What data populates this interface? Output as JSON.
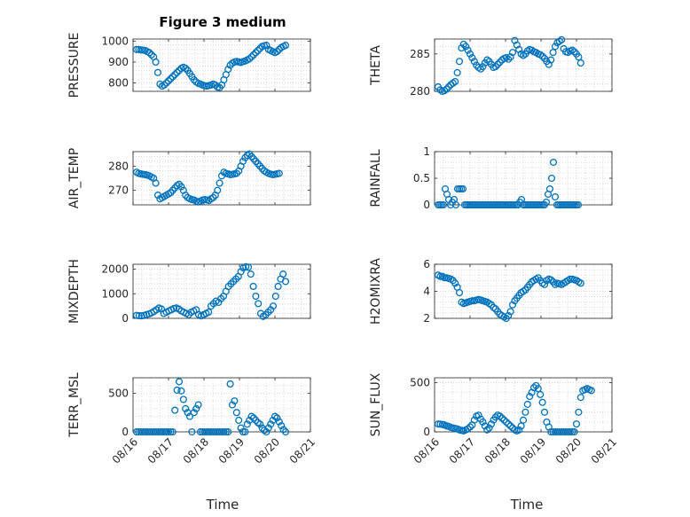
{
  "figure": {
    "title": "Figure 3 medium",
    "marker_color": "#0072bd",
    "grid": "minor dotted",
    "xlabel": "Time",
    "xticks": [
      "08/16",
      "08/17",
      "08/18",
      "08/19",
      "08/20",
      "08/21"
    ]
  },
  "chart_data": [
    {
      "type": "scatter",
      "name": "PRESSURE",
      "ylabel": "PRESSURE",
      "ylim": [
        760,
        1010
      ],
      "yticks": [
        800,
        900,
        1000
      ],
      "xlim": [
        0,
        5
      ],
      "x": [
        0.1,
        0.16,
        0.22,
        0.28,
        0.34,
        0.4,
        0.46,
        0.52,
        0.58,
        0.64,
        0.7,
        0.76,
        0.82,
        0.88,
        0.94,
        1.0,
        1.06,
        1.12,
        1.18,
        1.24,
        1.3,
        1.36,
        1.42,
        1.48,
        1.54,
        1.6,
        1.66,
        1.72,
        1.78,
        1.84,
        1.9,
        1.96,
        2.02,
        2.08,
        2.14,
        2.2,
        2.26,
        2.32,
        2.38,
        2.44,
        2.5,
        2.56,
        2.62,
        2.68,
        2.74,
        2.8,
        2.86,
        2.92,
        2.98,
        3.04,
        3.1,
        3.16,
        3.22,
        3.28,
        3.34,
        3.4,
        3.46,
        3.52,
        3.58,
        3.64,
        3.7,
        3.76,
        3.82,
        3.88,
        3.94,
        4.0,
        4.06,
        4.12,
        4.18,
        4.24,
        4.3
      ],
      "y": [
        960,
        960,
        958,
        957,
        955,
        950,
        945,
        935,
        925,
        900,
        850,
        795,
        785,
        790,
        800,
        810,
        820,
        830,
        840,
        850,
        860,
        870,
        875,
        870,
        860,
        845,
        830,
        815,
        805,
        798,
        795,
        790,
        787,
        785,
        788,
        790,
        795,
        790,
        780,
        778,
        790,
        815,
        840,
        865,
        885,
        895,
        900,
        903,
        900,
        898,
        902,
        905,
        910,
        915,
        925,
        935,
        945,
        955,
        965,
        975,
        978,
        980,
        960,
        955,
        950,
        945,
        950,
        960,
        970,
        975,
        980
      ]
    },
    {
      "type": "scatter",
      "name": "THETA",
      "ylabel": "THETA",
      "ylim": [
        280,
        287
      ],
      "yticks": [
        280,
        285
      ],
      "xlim": [
        0,
        5
      ],
      "x": [
        0.1,
        0.16,
        0.22,
        0.28,
        0.34,
        0.4,
        0.46,
        0.52,
        0.58,
        0.64,
        0.7,
        0.76,
        0.82,
        0.88,
        0.94,
        1.0,
        1.06,
        1.12,
        1.18,
        1.24,
        1.3,
        1.36,
        1.42,
        1.48,
        1.54,
        1.6,
        1.66,
        1.72,
        1.78,
        1.84,
        1.9,
        1.96,
        2.02,
        2.08,
        2.14,
        2.2,
        2.26,
        2.32,
        2.38,
        2.44,
        2.5,
        2.56,
        2.62,
        2.68,
        2.74,
        2.8,
        2.86,
        2.92,
        2.98,
        3.04,
        3.1,
        3.16,
        3.22,
        3.28,
        3.34,
        3.4,
        3.46,
        3.52,
        3.58,
        3.64,
        3.7,
        3.76,
        3.82,
        3.88,
        3.94,
        4.0,
        4.06,
        4.12
      ],
      "y": [
        280.6,
        280.2,
        280.0,
        280.1,
        280.3,
        280.6,
        280.9,
        281.1,
        281.3,
        282.5,
        284.0,
        285.8,
        286.3,
        286.0,
        285.5,
        285.0,
        284.5,
        284.0,
        283.5,
        283.2,
        283.0,
        283.3,
        283.8,
        284.2,
        284.0,
        283.6,
        283.2,
        283.3,
        283.6,
        283.9,
        284.2,
        284.4,
        284.5,
        284.3,
        284.6,
        285.2,
        286.8,
        286.2,
        285.6,
        285.0,
        284.8,
        285.0,
        285.4,
        285.6,
        285.5,
        285.3,
        285.2,
        285.0,
        284.9,
        284.7,
        284.4,
        284.0,
        283.6,
        284.2,
        285.2,
        286.0,
        286.5,
        286.7,
        286.9,
        285.7,
        285.3,
        285.2,
        285.4,
        285.5,
        285.3,
        285.0,
        284.6,
        283.8
      ]
    },
    {
      "type": "scatter",
      "name": "AIR_TEMP",
      "ylabel": "AIR_TEMP",
      "ylim": [
        264,
        286
      ],
      "yticks": [
        270,
        280
      ],
      "xlim": [
        0,
        5
      ],
      "x": [
        0.1,
        0.16,
        0.22,
        0.28,
        0.34,
        0.4,
        0.46,
        0.52,
        0.58,
        0.64,
        0.7,
        0.76,
        0.82,
        0.88,
        0.94,
        1.0,
        1.06,
        1.12,
        1.18,
        1.24,
        1.3,
        1.36,
        1.42,
        1.48,
        1.54,
        1.6,
        1.66,
        1.72,
        1.78,
        1.84,
        1.9,
        1.96,
        2.02,
        2.08,
        2.14,
        2.2,
        2.26,
        2.32,
        2.38,
        2.44,
        2.5,
        2.56,
        2.62,
        2.68,
        2.74,
        2.8,
        2.86,
        2.92,
        2.98,
        3.04,
        3.1,
        3.16,
        3.22,
        3.28,
        3.34,
        3.4,
        3.46,
        3.52,
        3.58,
        3.64,
        3.7,
        3.76,
        3.82,
        3.88,
        3.94,
        4.0,
        4.06,
        4.12
      ],
      "y": [
        277.5,
        277,
        276.8,
        276.6,
        276.5,
        276.3,
        276,
        275.5,
        275,
        273,
        268,
        266.5,
        267,
        267.5,
        268,
        268.5,
        269,
        270,
        271,
        272,
        272.5,
        271.5,
        270,
        268,
        267,
        266.5,
        266.2,
        266,
        265.5,
        265.2,
        265.5,
        266,
        266.2,
        266,
        265.8,
        266.5,
        267,
        268,
        270,
        273,
        276,
        277.5,
        277,
        276.8,
        276.5,
        276.6,
        276.8,
        277,
        278,
        280,
        282,
        283.5,
        284.5,
        285,
        284,
        283,
        282,
        281,
        280,
        279,
        278,
        277.5,
        277,
        276.7,
        276.5,
        276.6,
        276.8,
        277
      ]
    },
    {
      "type": "scatter",
      "name": "RAINFALL",
      "ylabel": "RAINFALL",
      "ylim": [
        0,
        1
      ],
      "yticks": [
        0,
        0.5,
        1
      ],
      "xlim": [
        0,
        5
      ],
      "x": [
        0.1,
        0.15,
        0.2,
        0.25,
        0.3,
        0.35,
        0.4,
        0.45,
        0.5,
        0.55,
        0.6,
        0.65,
        0.7,
        0.75,
        0.8,
        0.85,
        0.9,
        0.95,
        1.0,
        1.05,
        1.1,
        1.15,
        1.2,
        1.25,
        1.3,
        1.35,
        1.4,
        1.45,
        1.5,
        1.55,
        1.6,
        1.65,
        1.7,
        1.75,
        1.8,
        1.85,
        1.9,
        1.95,
        2.0,
        2.05,
        2.1,
        2.15,
        2.2,
        2.25,
        2.3,
        2.35,
        2.4,
        2.45,
        2.5,
        2.55,
        2.6,
        2.65,
        2.7,
        2.75,
        2.8,
        2.85,
        2.9,
        2.95,
        3.0,
        3.05,
        3.1,
        3.15,
        3.2,
        3.25,
        3.3,
        3.35,
        3.4,
        3.45,
        3.5,
        3.55,
        3.6,
        3.65,
        3.7,
        3.75,
        3.8,
        3.85,
        3.9,
        3.95,
        4.0,
        4.05
      ],
      "y": [
        0,
        0,
        0,
        0,
        0.3,
        0.2,
        0.1,
        0,
        0.05,
        0.1,
        0,
        0.3,
        0.3,
        0.3,
        0.3,
        0,
        0,
        0,
        0,
        0,
        0,
        0,
        0,
        0,
        0,
        0,
        0,
        0,
        0,
        0,
        0,
        0,
        0,
        0,
        0,
        0,
        0,
        0,
        0,
        0,
        0,
        0,
        0,
        0,
        0,
        0,
        0.05,
        0.1,
        0,
        0,
        0,
        0,
        0,
        0,
        0,
        0,
        0,
        0,
        0,
        0,
        0,
        0.05,
        0.2,
        0.3,
        0.5,
        0.8,
        0.15,
        0,
        0,
        0,
        0,
        0,
        0,
        0,
        0,
        0,
        0,
        0,
        0,
        0
      ]
    },
    {
      "type": "scatter",
      "name": "MIXDEPTH",
      "ylabel": "MIXDEPTH",
      "ylim": [
        0,
        2200
      ],
      "yticks": [
        0,
        1000,
        2000
      ],
      "xlim": [
        0,
        5
      ],
      "x": [
        0.1,
        0.17,
        0.24,
        0.31,
        0.38,
        0.45,
        0.52,
        0.59,
        0.66,
        0.73,
        0.8,
        0.87,
        0.94,
        1.01,
        1.08,
        1.15,
        1.22,
        1.29,
        1.36,
        1.43,
        1.5,
        1.57,
        1.64,
        1.71,
        1.78,
        1.85,
        1.92,
        1.99,
        2.06,
        2.13,
        2.2,
        2.27,
        2.34,
        2.41,
        2.48,
        2.55,
        2.62,
        2.69,
        2.76,
        2.83,
        2.9,
        2.97,
        3.04,
        3.11,
        3.18,
        3.25,
        3.32,
        3.39,
        3.46,
        3.53,
        3.6,
        3.67,
        3.74,
        3.81,
        3.88,
        3.95,
        4.02,
        4.09,
        4.16,
        4.23,
        4.3
      ],
      "y": [
        120,
        110,
        100,
        120,
        150,
        180,
        220,
        280,
        350,
        420,
        380,
        200,
        250,
        300,
        350,
        400,
        420,
        380,
        300,
        250,
        200,
        150,
        250,
        300,
        350,
        150,
        100,
        150,
        200,
        250,
        500,
        600,
        700,
        650,
        800,
        900,
        1100,
        1300,
        1400,
        1500,
        1600,
        1700,
        1900,
        2050,
        2100,
        2080,
        1800,
        1300,
        900,
        600,
        200,
        80,
        150,
        250,
        350,
        500,
        900,
        1300,
        1600,
        1800,
        1500
      ]
    },
    {
      "type": "scatter",
      "name": "H2OMIXRA",
      "ylabel": "H2OMIXRA",
      "ylim": [
        2,
        6
      ],
      "yticks": [
        2,
        4,
        6
      ],
      "xlim": [
        0,
        5
      ],
      "x": [
        0.1,
        0.16,
        0.22,
        0.28,
        0.34,
        0.4,
        0.46,
        0.52,
        0.58,
        0.64,
        0.7,
        0.76,
        0.82,
        0.88,
        0.94,
        1.0,
        1.06,
        1.12,
        1.18,
        1.24,
        1.3,
        1.36,
        1.42,
        1.48,
        1.54,
        1.6,
        1.66,
        1.72,
        1.78,
        1.84,
        1.9,
        1.96,
        2.02,
        2.08,
        2.14,
        2.2,
        2.26,
        2.32,
        2.38,
        2.44,
        2.5,
        2.56,
        2.62,
        2.68,
        2.74,
        2.8,
        2.86,
        2.92,
        2.98,
        3.04,
        3.1,
        3.16,
        3.22,
        3.28,
        3.34,
        3.4,
        3.46,
        3.52,
        3.58,
        3.64,
        3.7,
        3.76,
        3.82,
        3.88,
        3.94,
        4.0,
        4.06,
        4.12
      ],
      "y": [
        5.2,
        5.1,
        5.1,
        5.0,
        5.0,
        4.95,
        4.9,
        4.8,
        4.6,
        4.3,
        3.9,
        3.2,
        3.1,
        3.15,
        3.2,
        3.25,
        3.3,
        3.3,
        3.35,
        3.4,
        3.35,
        3.3,
        3.25,
        3.2,
        3.1,
        3.0,
        2.8,
        2.7,
        2.5,
        2.3,
        2.2,
        2.1,
        2.0,
        2.2,
        2.5,
        3.0,
        3.3,
        3.5,
        3.7,
        3.9,
        4.0,
        4.1,
        4.3,
        4.5,
        4.7,
        4.8,
        4.9,
        5.0,
        4.8,
        4.6,
        4.5,
        4.8,
        4.9,
        4.85,
        4.7,
        4.5,
        4.6,
        4.55,
        4.5,
        4.6,
        4.7,
        4.8,
        4.9,
        4.9,
        4.85,
        4.8,
        4.7,
        4.6
      ]
    },
    {
      "type": "scatter",
      "name": "TERR_MSL",
      "ylabel": "TERR_MSL",
      "ylim": [
        0,
        700
      ],
      "yticks": [
        0,
        500
      ],
      "xlim": [
        0,
        5
      ],
      "x": [
        0.1,
        0.16,
        0.22,
        0.28,
        0.34,
        0.4,
        0.46,
        0.52,
        0.58,
        0.64,
        0.7,
        0.76,
        0.82,
        0.88,
        0.94,
        1.0,
        1.06,
        1.12,
        1.18,
        1.24,
        1.3,
        1.36,
        1.42,
        1.48,
        1.54,
        1.6,
        1.66,
        1.72,
        1.78,
        1.84,
        1.9,
        1.96,
        2.02,
        2.08,
        2.14,
        2.2,
        2.26,
        2.32,
        2.38,
        2.44,
        2.5,
        2.56,
        2.62,
        2.68,
        2.74,
        2.8,
        2.86,
        2.92,
        2.98,
        3.04,
        3.1,
        3.16,
        3.22,
        3.28,
        3.34,
        3.4,
        3.46,
        3.52,
        3.58,
        3.64,
        3.7,
        3.76,
        3.82,
        3.88,
        3.94,
        4.0,
        4.06,
        4.12,
        4.18,
        4.24,
        4.3
      ],
      "y": [
        0,
        0,
        0,
        0,
        0,
        0,
        0,
        0,
        0,
        0,
        0,
        0,
        0,
        0,
        0,
        0,
        0,
        0,
        280,
        540,
        650,
        530,
        420,
        300,
        250,
        200,
        0,
        250,
        300,
        350,
        0,
        0,
        0,
        0,
        0,
        0,
        0,
        0,
        0,
        0,
        0,
        0,
        0,
        0,
        620,
        350,
        400,
        250,
        150,
        50,
        0,
        0,
        100,
        150,
        200,
        180,
        150,
        120,
        100,
        50,
        20,
        0,
        50,
        100,
        150,
        200,
        180,
        130,
        80,
        30,
        0
      ]
    },
    {
      "type": "scatter",
      "name": "SUN_FLUX",
      "ylabel": "SUN_FLUX",
      "ylim": [
        0,
        550
      ],
      "yticks": [
        0,
        500
      ],
      "xlim": [
        0,
        5
      ],
      "x": [
        0.1,
        0.16,
        0.22,
        0.28,
        0.34,
        0.4,
        0.46,
        0.52,
        0.58,
        0.64,
        0.7,
        0.76,
        0.82,
        0.88,
        0.94,
        1.0,
        1.06,
        1.12,
        1.18,
        1.24,
        1.3,
        1.36,
        1.42,
        1.48,
        1.54,
        1.6,
        1.66,
        1.72,
        1.78,
        1.84,
        1.9,
        1.96,
        2.02,
        2.08,
        2.14,
        2.2,
        2.26,
        2.32,
        2.38,
        2.44,
        2.5,
        2.56,
        2.62,
        2.68,
        2.74,
        2.8,
        2.86,
        2.92,
        2.98,
        3.04,
        3.1,
        3.16,
        3.22,
        3.28,
        3.34,
        3.4,
        3.46,
        3.52,
        3.58,
        3.64,
        3.7,
        3.76,
        3.82,
        3.88,
        3.94,
        4.0,
        4.06,
        4.12,
        4.18,
        4.24,
        4.3,
        4.36,
        4.42
      ],
      "y": [
        80,
        78,
        75,
        70,
        60,
        55,
        45,
        40,
        35,
        30,
        20,
        15,
        10,
        20,
        30,
        50,
        70,
        120,
        160,
        170,
        130,
        100,
        60,
        20,
        40,
        80,
        120,
        150,
        170,
        160,
        140,
        120,
        100,
        80,
        60,
        40,
        20,
        10,
        20,
        60,
        120,
        200,
        280,
        360,
        400,
        450,
        470,
        440,
        380,
        300,
        200,
        100,
        50,
        0,
        0,
        0,
        0,
        0,
        0,
        0,
        0,
        0,
        0,
        0,
        0,
        80,
        200,
        350,
        420,
        430,
        440,
        430,
        420
      ]
    }
  ]
}
